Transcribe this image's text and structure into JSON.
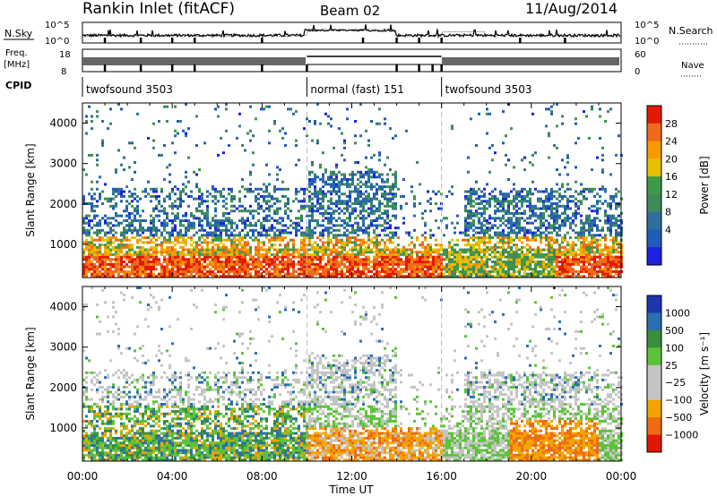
{
  "header": {
    "station": "Rankin Inlet (fitACF)",
    "beam": "Beam 02",
    "date": "11/Aug/2014"
  },
  "summary_panels": {
    "nsky_label": "N.Sky",
    "nsky_ticks": [
      "10^5",
      "10^0"
    ],
    "nsearch_label": "N.Search",
    "nsearch_ticks": [
      "10^5",
      "10^0"
    ],
    "freq_label": "Freq.",
    "freq_unit": "[MHz]",
    "freq_ticks": [
      "8",
      "18"
    ],
    "nave_label": "Nave",
    "nave_ticks": [
      "60",
      "0"
    ],
    "cpid_label": "CPID",
    "cpid_segments": [
      {
        "start_h": 0,
        "end_h": 10,
        "label": "twofsound 3503"
      },
      {
        "start_h": 10,
        "end_h": 16,
        "label": "normal (fast) 151"
      },
      {
        "start_h": 16,
        "end_h": 24,
        "label": "twofsound 3503"
      }
    ]
  },
  "colors": {
    "power_scale": [
      "#1c22e0",
      "#1f5cb8",
      "#2f6f9c",
      "#3f8a5a",
      "#3c9a4a",
      "#e5c100",
      "#f59b00",
      "#ef6a1c",
      "#e21b00"
    ],
    "velocity_scale": [
      "#2034b0",
      "#2a6fb0",
      "#3b8f3c",
      "#5cc23a",
      "#c4c4c4",
      "#c4c4c4",
      "#f3a400",
      "#ef6a12",
      "#e01800"
    ]
  },
  "chart_data": [
    {
      "type": "heatmap",
      "name": "power",
      "xlabel": "",
      "ylabel": "Slant Range [km]",
      "x_ticks": [
        "00:00",
        "04:00",
        "08:00",
        "12:00",
        "16:00",
        "20:00",
        "00:00"
      ],
      "x_range_hours": [
        0,
        24
      ],
      "ylim": [
        180,
        4500
      ],
      "y_ticks": [
        1000,
        2000,
        3000,
        4000
      ],
      "colorbar_label": "Power [dB]",
      "colorbar_ticks": [
        "28",
        "24",
        "20",
        "16",
        "12",
        "8",
        "4"
      ],
      "colorbar_range": [
        0,
        30
      ],
      "vertical_markers_hours": [
        10,
        16
      ]
    },
    {
      "type": "heatmap",
      "name": "velocity",
      "xlabel": "Time UT",
      "ylabel": "Slant Range [km]",
      "x_ticks": [
        "00:00",
        "04:00",
        "08:00",
        "12:00",
        "16:00",
        "20:00",
        "00:00"
      ],
      "x_range_hours": [
        0,
        24
      ],
      "ylim": [
        180,
        4500
      ],
      "y_ticks": [
        1000,
        2000,
        3000,
        4000
      ],
      "colorbar_label": "Velocity [m s⁻¹]",
      "colorbar_ticks": [
        "1000",
        "500",
        "100",
        "25",
        "−25",
        "−100",
        "−500",
        "−1000"
      ],
      "colorbar_levels": [
        1000,
        500,
        100,
        25,
        -25,
        -100,
        -500,
        -1000
      ],
      "vertical_markers_hours": [
        10,
        16
      ]
    }
  ]
}
